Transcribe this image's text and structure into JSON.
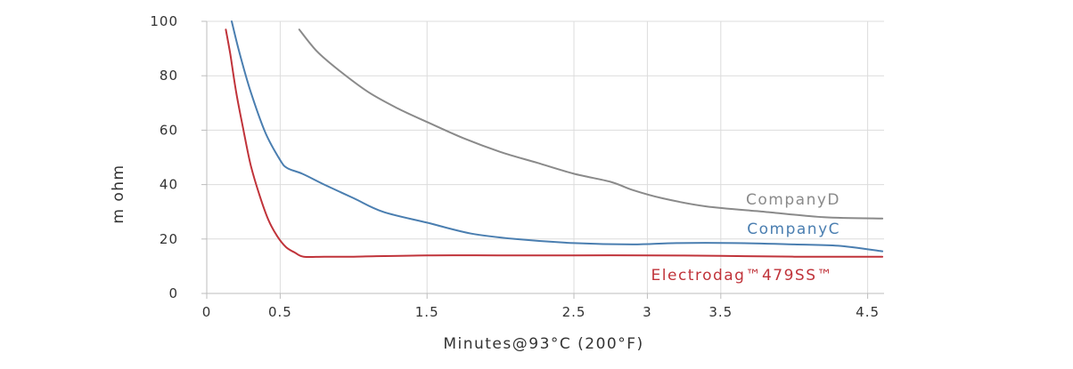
{
  "chart_data": {
    "type": "line",
    "title": "",
    "xlabel": "Minutes@93°C (200°F)",
    "ylabel": "m ohm",
    "xlim": [
      0,
      4.6
    ],
    "ylim": [
      0,
      100
    ],
    "x_ticks": [
      0,
      0.5,
      1.5,
      2.5,
      3,
      3.5,
      4.5
    ],
    "x_tick_labels": [
      "0",
      "0.5",
      "1.5",
      "2.5",
      "3",
      "3.5",
      "4.5"
    ],
    "y_ticks": [
      0,
      20,
      40,
      60,
      80,
      100
    ],
    "y_tick_labels": [
      "0",
      "20",
      "40",
      "60",
      "80",
      "100"
    ],
    "grid": true,
    "series": [
      {
        "name": "CompanyD",
        "color": "#8a8a8a",
        "x": [
          0.63,
          0.75,
          0.9,
          1.1,
          1.3,
          1.5,
          1.75,
          2.0,
          2.25,
          2.5,
          2.75,
          2.9,
          3.1,
          3.4,
          3.8,
          4.2,
          4.6
        ],
        "y": [
          97,
          89,
          82,
          74,
          68,
          63,
          57,
          52,
          48,
          44,
          41,
          38,
          35,
          32,
          30,
          28,
          27.5
        ]
      },
      {
        "name": "CompanyC",
        "color": "#4a7eb0",
        "x": [
          0.17,
          0.22,
          0.3,
          0.4,
          0.5,
          0.55,
          0.65,
          0.8,
          1.0,
          1.2,
          1.5,
          1.8,
          2.1,
          2.5,
          2.9,
          3.2,
          3.6,
          4.0,
          4.3,
          4.6
        ],
        "y": [
          100,
          89,
          74,
          59,
          49,
          46,
          44,
          40,
          35,
          30,
          26,
          22,
          20,
          18.5,
          18,
          18.5,
          18.5,
          18,
          17.5,
          15.5
        ]
      },
      {
        "name": "Electrodag™479SS™",
        "color": "#c0333a",
        "x": [
          0.13,
          0.16,
          0.2,
          0.25,
          0.3,
          0.36,
          0.42,
          0.48,
          0.54,
          0.6,
          0.66,
          0.8,
          1.0,
          1.5,
          2.0,
          2.5,
          3.0,
          3.5,
          4.0,
          4.6
        ],
        "y": [
          97,
          88,
          74,
          60,
          47,
          36,
          27,
          21,
          17,
          15,
          13.5,
          13.5,
          13.5,
          14,
          14,
          14,
          14,
          13.8,
          13.5,
          13.5
        ]
      }
    ]
  }
}
